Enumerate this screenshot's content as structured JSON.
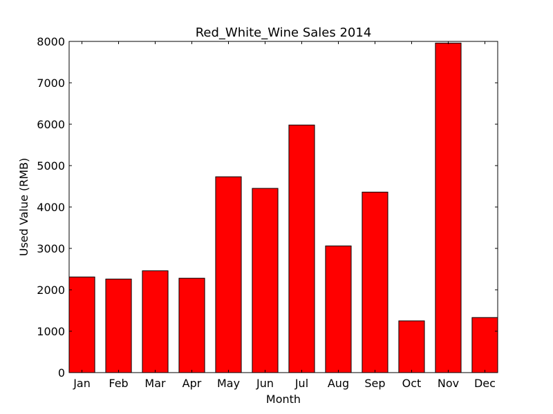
{
  "chart_data": {
    "type": "bar",
    "title": "Red_White_Wine Sales 2014",
    "xlabel": "Month",
    "ylabel": "Used Value (RMB)",
    "categories": [
      "Jan",
      "Feb",
      "Mar",
      "Apr",
      "May",
      "Jun",
      "Jul",
      "Aug",
      "Sep",
      "Oct",
      "Nov",
      "Dec"
    ],
    "values": [
      2310,
      2260,
      2460,
      2280,
      4730,
      4450,
      5980,
      3060,
      4360,
      1250,
      7960,
      1330
    ],
    "ylim": [
      0,
      8000
    ],
    "yticks": [
      "0",
      "1000",
      "2000",
      "3000",
      "4000",
      "5000",
      "6000",
      "7000",
      "8000"
    ],
    "bar_color": "#ff0000",
    "edge_color": "#000000",
    "grid": false,
    "legend": "none"
  }
}
